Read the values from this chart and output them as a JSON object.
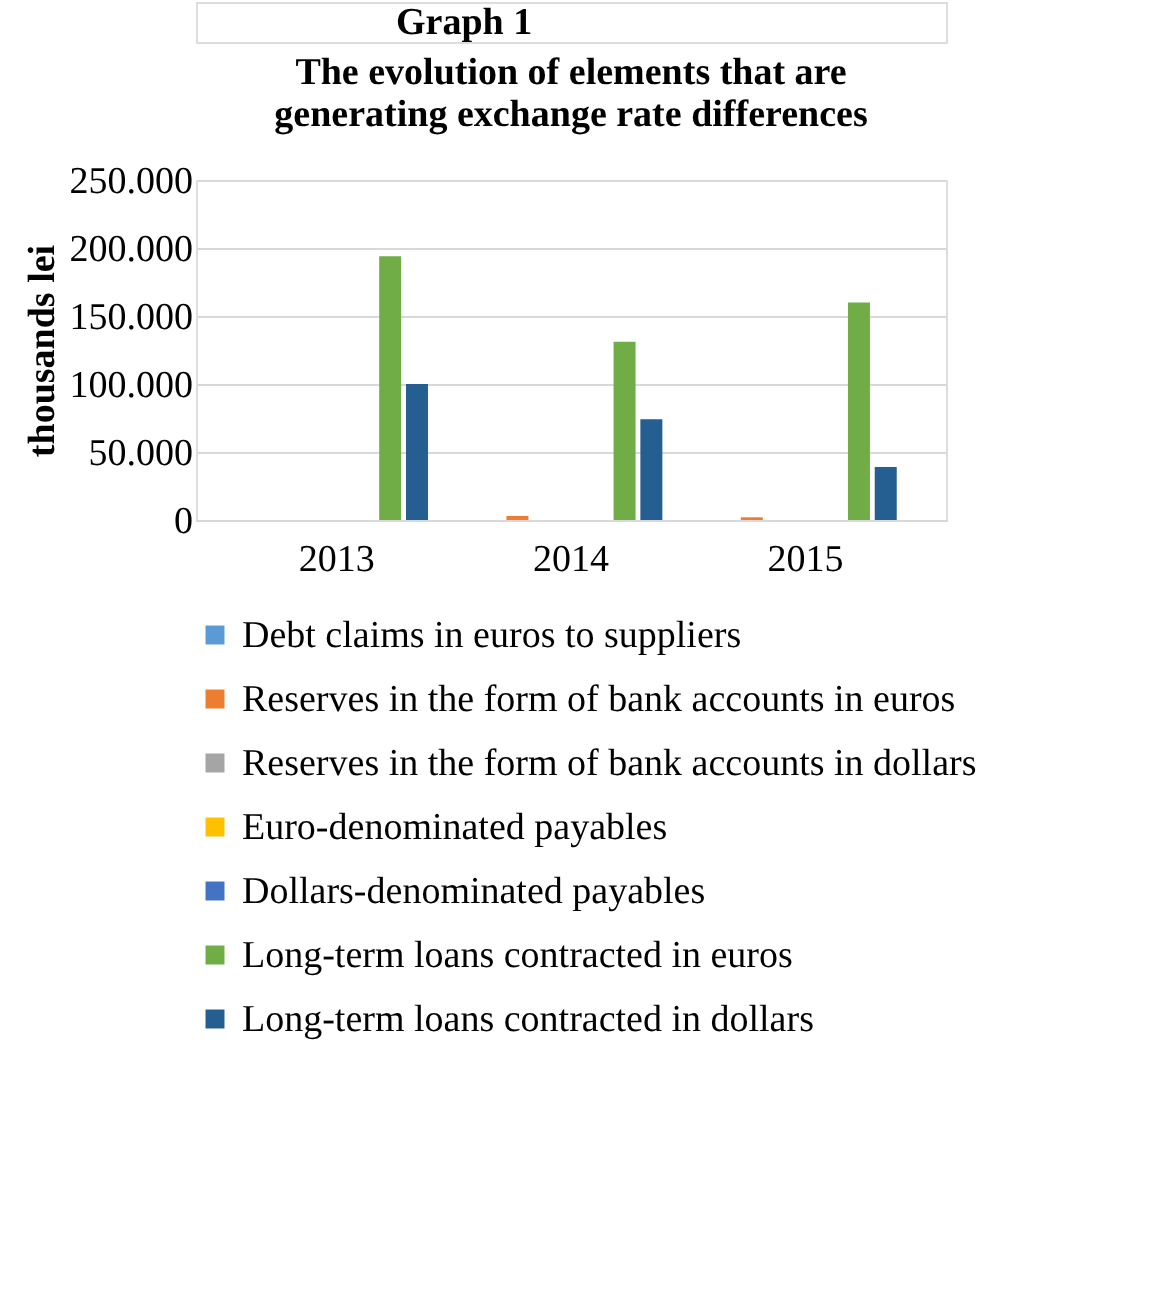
{
  "chart_data": {
    "type": "bar",
    "title": "The evolution of elements that are generating exchange rate differences",
    "ylabel": "thousands lei",
    "annotations": [
      "Graph 1"
    ],
    "categories": [
      "2013",
      "2014",
      "2015"
    ],
    "series": [
      {
        "name": "Debt claims in euros to suppliers",
        "color": "#5b9bd5",
        "values": [
          0,
          0,
          0
        ]
      },
      {
        "name": "Reserves in the form of bank accounts in euros",
        "color": "#ed7d31",
        "values": [
          0,
          3000,
          2000
        ]
      },
      {
        "name": "Reserves in the form of bank accounts in dollars",
        "color": "#a5a5a5",
        "values": [
          0,
          0,
          0
        ]
      },
      {
        "name": "Euro-denominated payables",
        "color": "#ffc000",
        "values": [
          0,
          0,
          0
        ]
      },
      {
        "name": "Dollars-denominated payables",
        "color": "#4472c4",
        "values": [
          0,
          0,
          0
        ]
      },
      {
        "name": "Long-term loans contracted in euros",
        "color": "#70ad47",
        "values": [
          194000,
          131000,
          160000
        ]
      },
      {
        "name": "Long-term loans contracted in dollars",
        "color": "#255e91",
        "values": [
          100000,
          74000,
          39000
        ]
      }
    ],
    "ylim": [
      0,
      250000
    ],
    "yticks": [
      {
        "value": 0,
        "label": "0"
      },
      {
        "value": 50000,
        "label": "50.000"
      },
      {
        "value": 100000,
        "label": "100.000"
      },
      {
        "value": 150000,
        "label": "150.000"
      },
      {
        "value": 200000,
        "label": "200.000"
      },
      {
        "value": 250000,
        "label": "250.000"
      }
    ],
    "grid": "y",
    "legend": "bottom"
  }
}
